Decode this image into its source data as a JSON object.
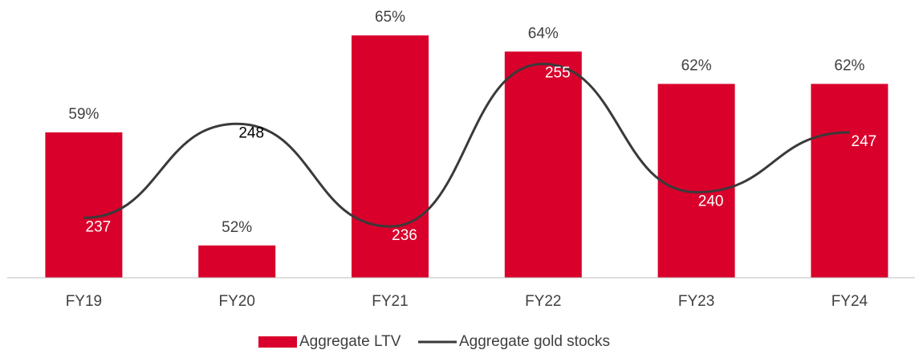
{
  "chart_data": {
    "type": "bar-line",
    "categories": [
      "FY19",
      "FY20",
      "FY21",
      "FY22",
      "FY23",
      "FY24"
    ],
    "series": [
      {
        "name": "Aggregate LTV",
        "type": "bar",
        "color": "#d9002b",
        "axis": "y",
        "values": [
          59,
          52,
          65,
          64,
          62,
          62
        ],
        "value_labels": [
          "59%",
          "52%",
          "65%",
          "64%",
          "62%",
          "62%"
        ]
      },
      {
        "name": "Aggregate gold stocks",
        "type": "line",
        "color": "#3a3a3a",
        "axis": "y2",
        "values": [
          237,
          248,
          236,
          255,
          240,
          247
        ]
      }
    ],
    "ylim": [
      50,
      66.2
    ],
    "y2lim": [
      230,
      260.6
    ],
    "legend": "bottom"
  }
}
